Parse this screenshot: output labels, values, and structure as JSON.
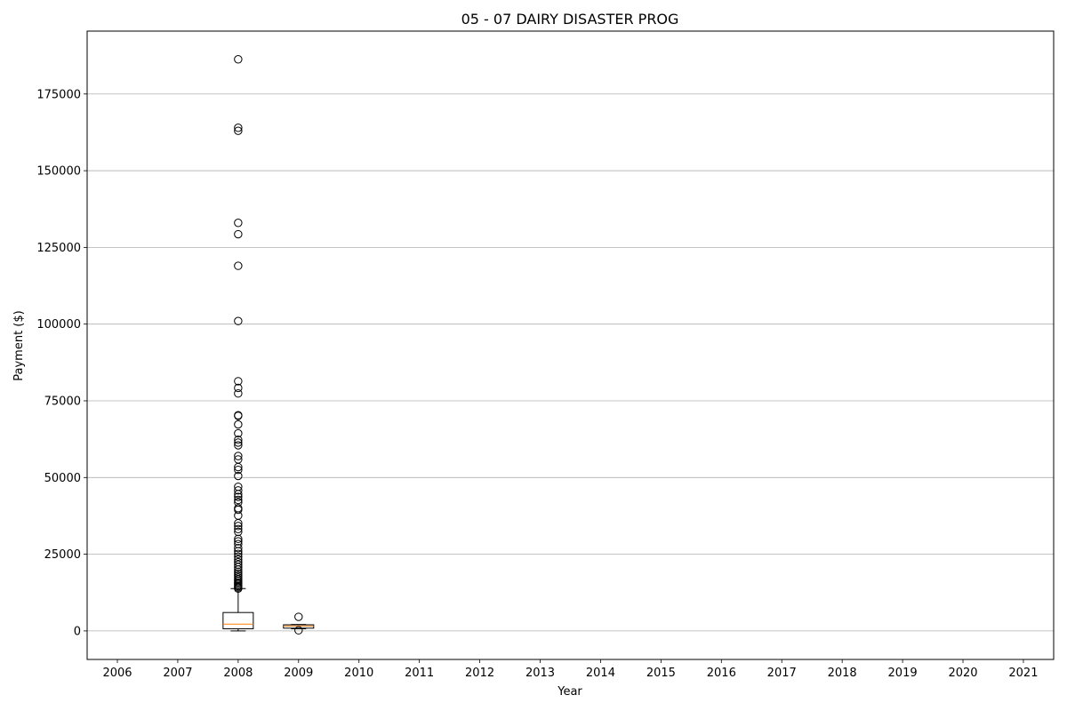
{
  "chart_data": {
    "type": "box",
    "title": "05 - 07 DAIRY DISASTER PROG",
    "xlabel": "Year",
    "ylabel": "Payment ($)",
    "categories": [
      "2006",
      "2007",
      "2008",
      "2009",
      "2010",
      "2011",
      "2012",
      "2013",
      "2014",
      "2015",
      "2016",
      "2017",
      "2018",
      "2019",
      "2020",
      "2021"
    ],
    "yticks": [
      0,
      25000,
      50000,
      75000,
      100000,
      125000,
      150000,
      175000
    ],
    "ylim": [
      -9300,
      195500
    ],
    "grid": "y",
    "colors": {
      "box": "#000000",
      "median": "#ff7f0e",
      "grid": "#b0b0b0"
    },
    "boxes": [
      {
        "category": "2008",
        "whisker_low": 0,
        "q1": 700,
        "median": 2200,
        "q3": 6000,
        "whisker_high": 13800,
        "outliers": [
          13800,
          14200,
          14600,
          15000,
          15400,
          15800,
          16300,
          16800,
          17400,
          18000,
          18700,
          19300,
          20000,
          20800,
          21600,
          22400,
          23300,
          24200,
          25100,
          26000,
          27000,
          28300,
          29200,
          30000,
          32300,
          33200,
          34200,
          35100,
          37600,
          39500,
          40000,
          41900,
          42700,
          43700,
          44600,
          45800,
          47000,
          50500,
          52500,
          53400,
          55900,
          57000,
          60500,
          61400,
          62300,
          64400,
          67300,
          70100,
          70300,
          77400,
          79200,
          81400,
          101000,
          119000,
          129300,
          133000,
          163000,
          164000,
          186300
        ]
      },
      {
        "category": "2009",
        "whisker_low": 700,
        "q1": 900,
        "median": 1600,
        "q3": 2000,
        "whisker_high": 2100,
        "outliers": [
          200,
          4600
        ]
      }
    ]
  }
}
